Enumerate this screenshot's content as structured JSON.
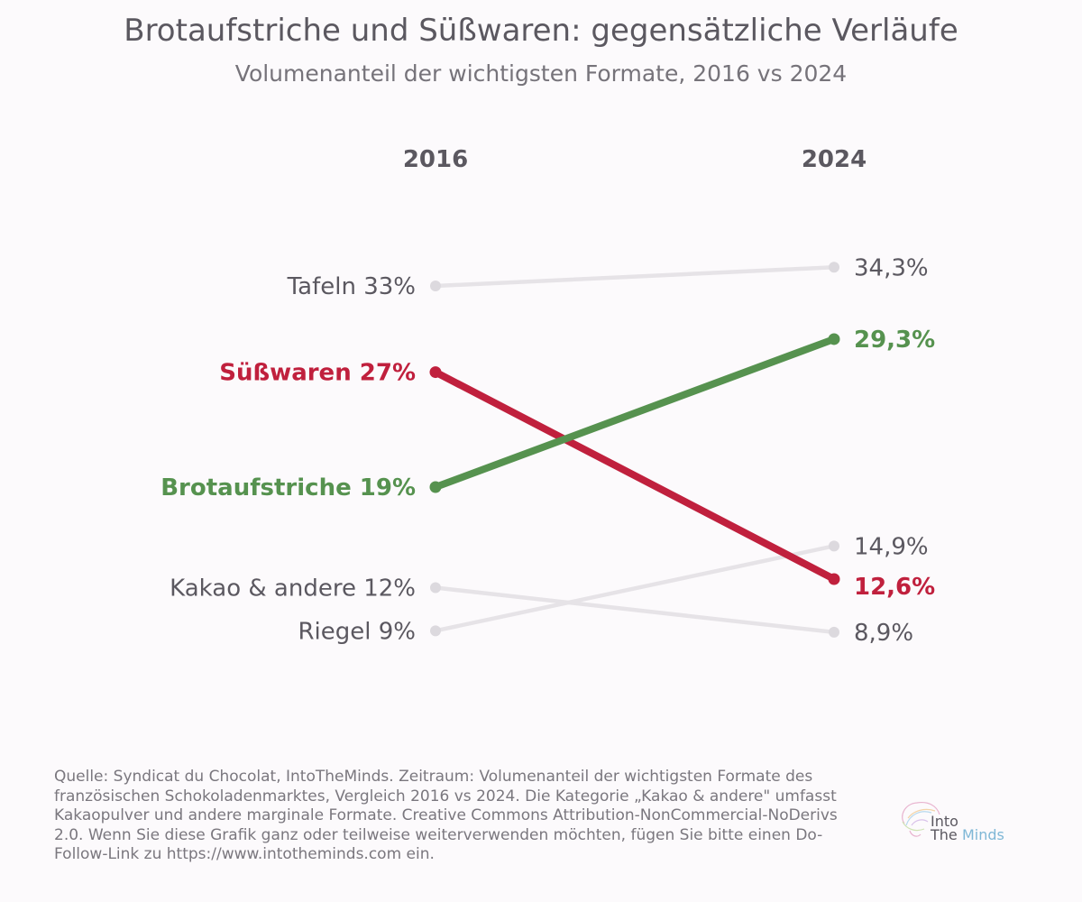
{
  "title": "Brotaufstriche und Süßwaren: gegensätzliche Verläufe",
  "subtitle": "Volumenanteil der wichtigsten Formate, 2016 vs 2024",
  "chart_data": {
    "type": "line",
    "chart_style": "slope",
    "x": [
      "2016",
      "2024"
    ],
    "series": [
      {
        "name": "Tafeln",
        "values": [
          33,
          34.3
        ],
        "labels": [
          "33%",
          "34,3%"
        ],
        "color": "#e6e3e7",
        "highlight": false
      },
      {
        "name": "Süßwaren",
        "values": [
          27,
          12.6
        ],
        "labels": [
          "27%",
          "12,6%"
        ],
        "color": "#c0203d",
        "highlight": true
      },
      {
        "name": "Brotaufstriche",
        "values": [
          19,
          29.3
        ],
        "labels": [
          "19%",
          "29,3%"
        ],
        "color": "#56924f",
        "highlight": true
      },
      {
        "name": "Kakao & andere",
        "values": [
          12,
          8.9
        ],
        "labels": [
          "12%",
          "8,9%"
        ],
        "color": "#e6e3e7",
        "highlight": false
      },
      {
        "name": "Riegel",
        "values": [
          9,
          14.9
        ],
        "labels": [
          "9%",
          "14,9%"
        ],
        "color": "#e6e3e7",
        "highlight": false
      }
    ]
  },
  "colors": {
    "text": "#5b5860",
    "muted_line": "#e6e3e7",
    "muted_dot": "#dcd9de",
    "suesswaren": "#c0203d",
    "brotaufstriche": "#56924f"
  },
  "footer": "Quelle: Syndicat du Chocolat, IntoTheMinds. Zeitraum: Volumenanteil der wichtigsten Formate des französischen Schokoladenmarktes, Vergleich 2016 vs 2024. Die Kategorie „Kakao & andere\" umfasst Kakaopulver und andere marginale Formate. Creative Commons Attribution-NonCommercial-NoDerivs 2.0. Wenn Sie diese Grafik ganz oder teilweise weiterverwenden möchten, fügen Sie bitte einen Do-Follow-Link zu https://www.intotheminds.com ein.",
  "logo": {
    "into": "Into",
    "the": "The",
    "minds": "Minds"
  }
}
